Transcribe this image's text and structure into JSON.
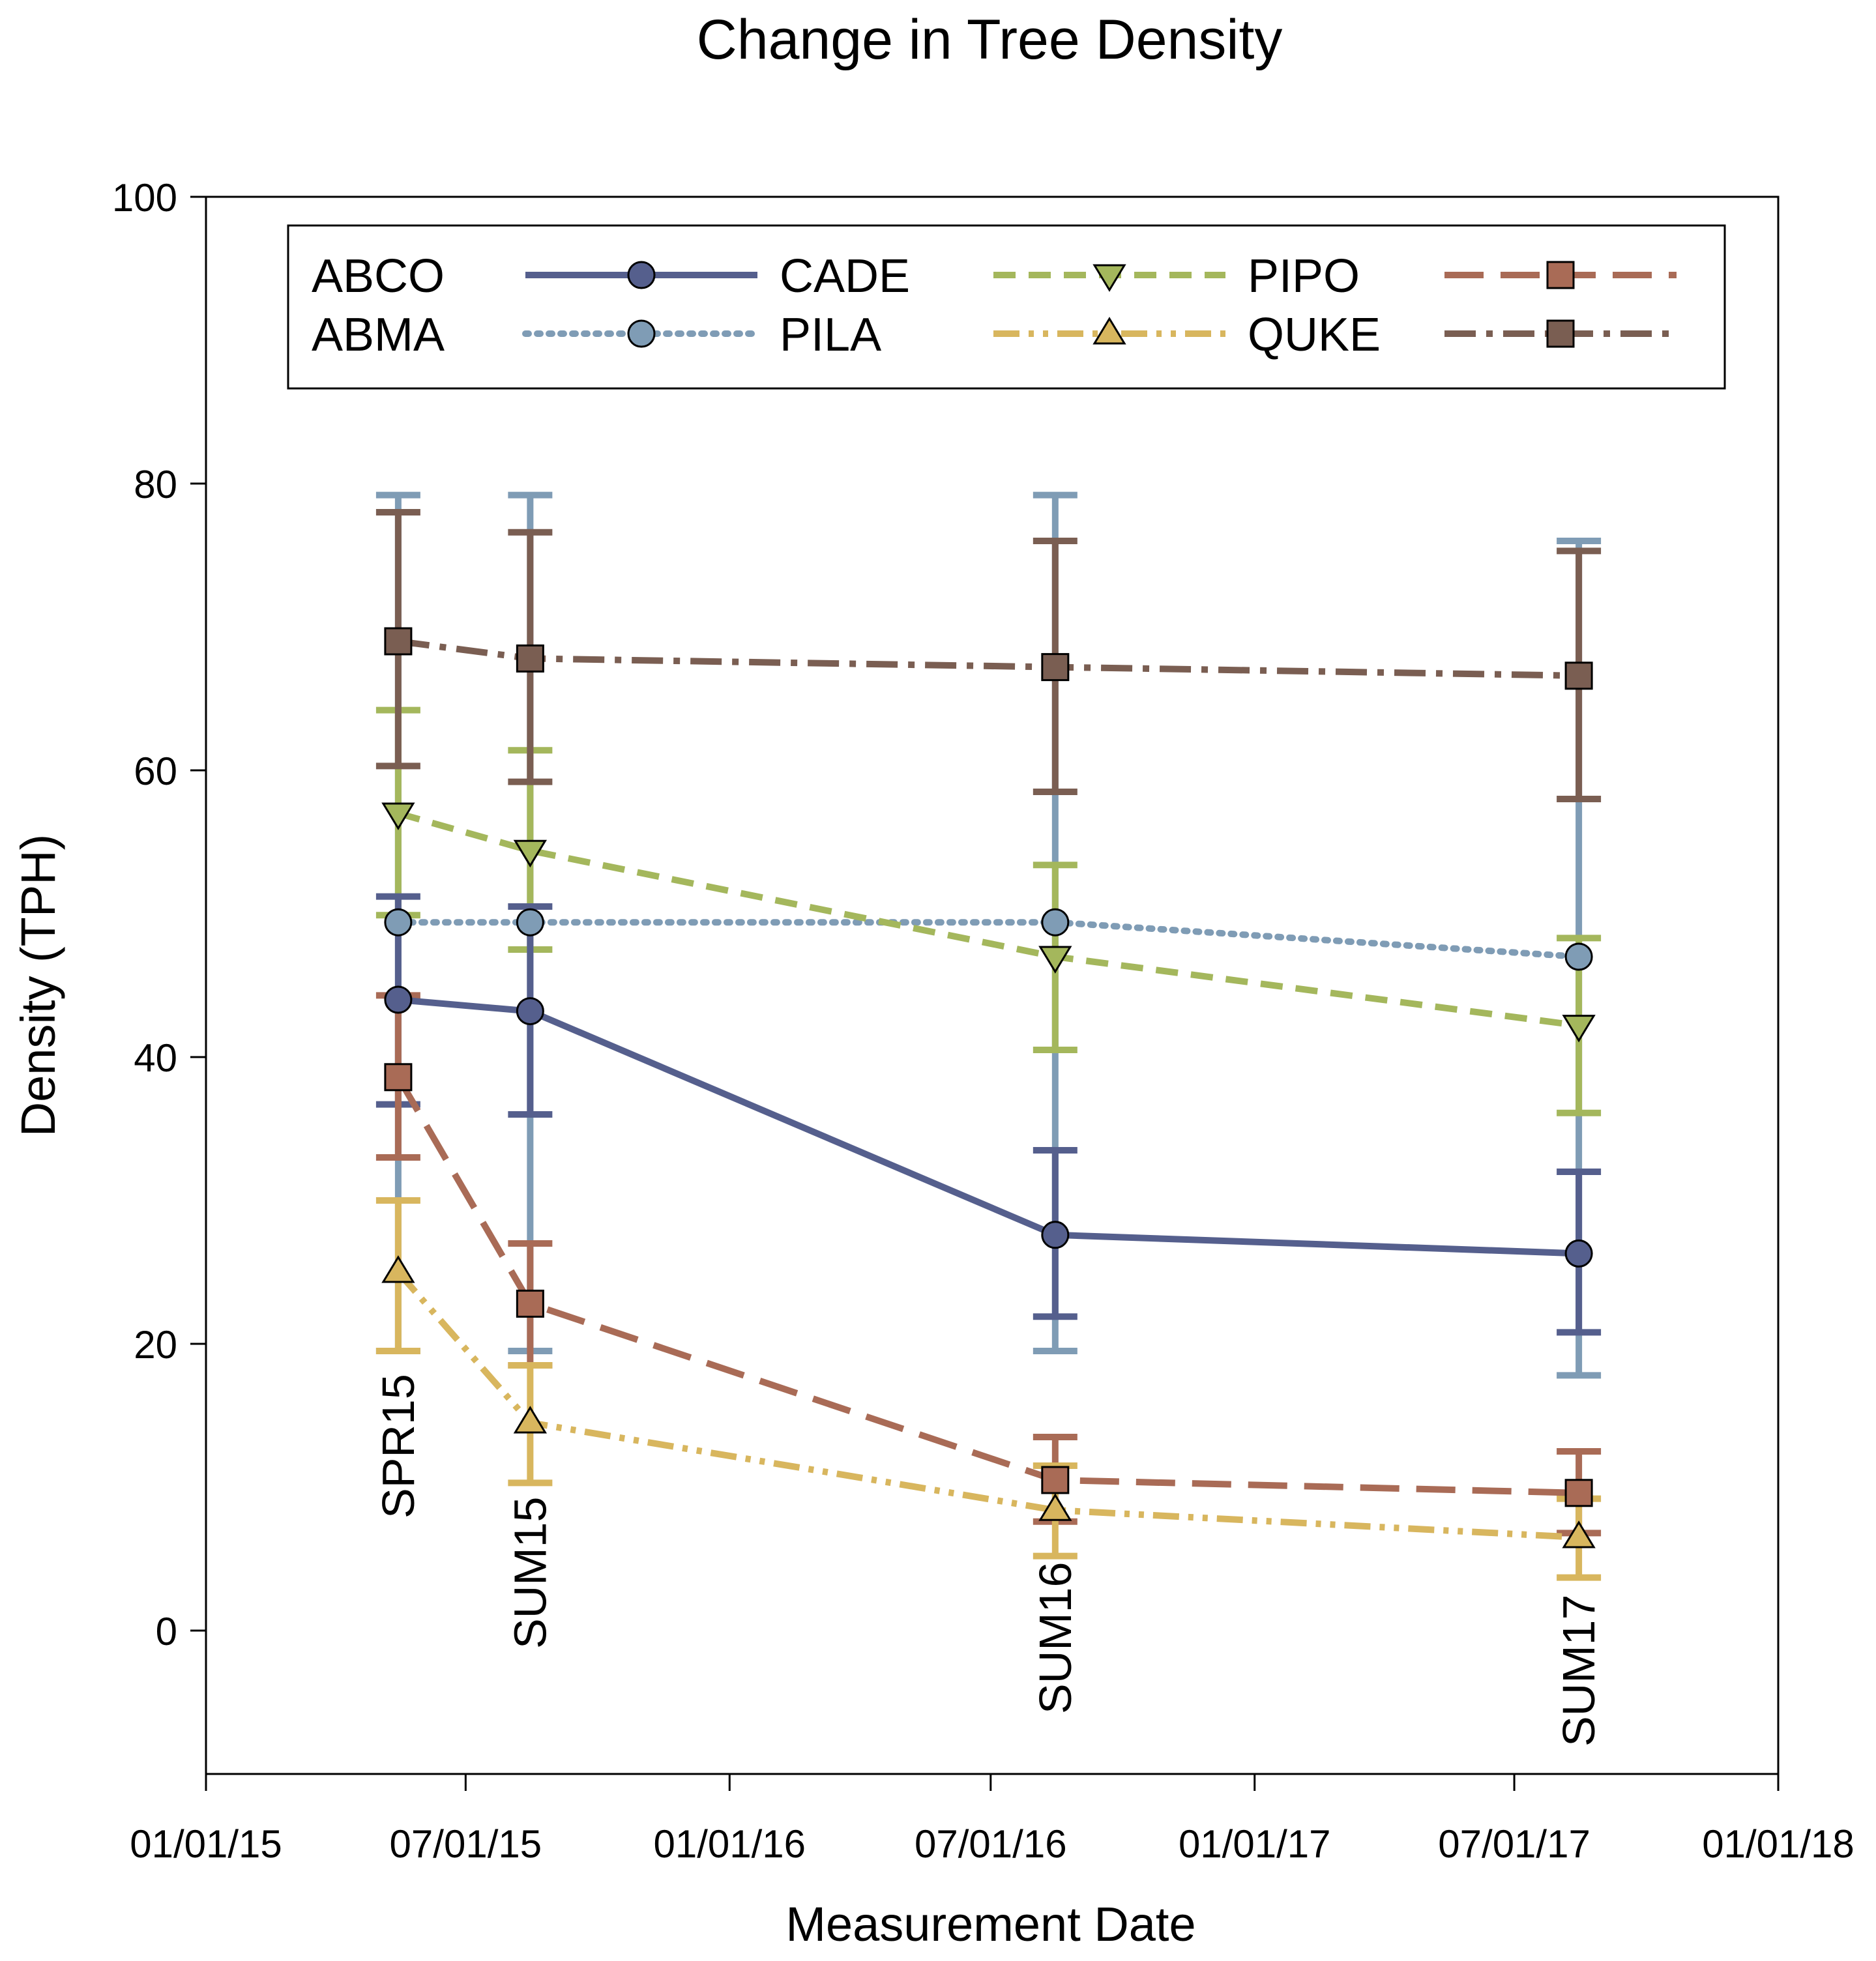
{
  "chart_data": {
    "type": "line",
    "title": "Change in Tree Density",
    "xlabel": "Measurement Date",
    "ylabel": "Density (TPH)",
    "ylim": [
      -10,
      100
    ],
    "yticks": [
      "0",
      "20",
      "40",
      "60",
      "80",
      "100"
    ],
    "xlim": [
      "2015-01-01",
      "2018-01-01"
    ],
    "xticks": [
      "01/01/15",
      "07/01/15",
      "01/01/16",
      "07/01/16",
      "01/01/17",
      "07/01/17",
      "01/01/18"
    ],
    "grid": false,
    "legend_position": "top",
    "x": [
      "2015-05-15",
      "2015-08-15",
      "2016-08-15",
      "2017-08-15"
    ],
    "point_labels": [
      "SPR15",
      "SUM15",
      "SUM16",
      "SUM17"
    ],
    "series": [
      {
        "name": "ABCO",
        "marker": "circle",
        "line": "solid",
        "color": "#555f8d",
        "values": [
          44,
          43.2,
          27.6,
          26.3
        ],
        "err_low": [
          36.7,
          36,
          21.9,
          20.8
        ],
        "err_high": [
          51.2,
          50.5,
          33.5,
          32
        ]
      },
      {
        "name": "ABMA",
        "marker": "circle",
        "line": "dotted",
        "color": "#7f9cb5",
        "values": [
          49.4,
          49.4,
          49.4,
          47
        ],
        "err_low": [
          19.5,
          19.5,
          19.5,
          17.8
        ],
        "err_high": [
          79.2,
          79.2,
          79.2,
          76
        ]
      },
      {
        "name": "CADE",
        "marker": "triangle-down",
        "line": "dashed",
        "color": "#a4b75c",
        "values": [
          57,
          54.4,
          47,
          42.2
        ],
        "err_low": [
          49.9,
          47.5,
          40.5,
          36.1
        ],
        "err_high": [
          64.2,
          61.4,
          53.4,
          48.3
        ]
      },
      {
        "name": "PILA",
        "marker": "triangle-up",
        "line": "dash-dot-dot",
        "color": "#d8b65e",
        "values": [
          25,
          14.5,
          8.4,
          6.5
        ],
        "err_low": [
          19.5,
          10.3,
          5.2,
          3.7
        ],
        "err_high": [
          30,
          18.5,
          11.5,
          9.2
        ]
      },
      {
        "name": "PIPO",
        "marker": "square",
        "line": "long-dash",
        "color": "#a96b56",
        "values": [
          38.6,
          22.8,
          10.5,
          9.6
        ],
        "err_low": [
          33,
          18.5,
          7.6,
          6.8
        ],
        "err_high": [
          44.3,
          27,
          13.5,
          12.5
        ]
      },
      {
        "name": "QUKE",
        "marker": "square",
        "line": "dash-dot",
        "color": "#7a5e52",
        "values": [
          69,
          67.8,
          67.2,
          66.6
        ],
        "err_low": [
          60.3,
          59.2,
          58.5,
          58
        ],
        "err_high": [
          78,
          76.6,
          76,
          75.3
        ]
      }
    ]
  }
}
